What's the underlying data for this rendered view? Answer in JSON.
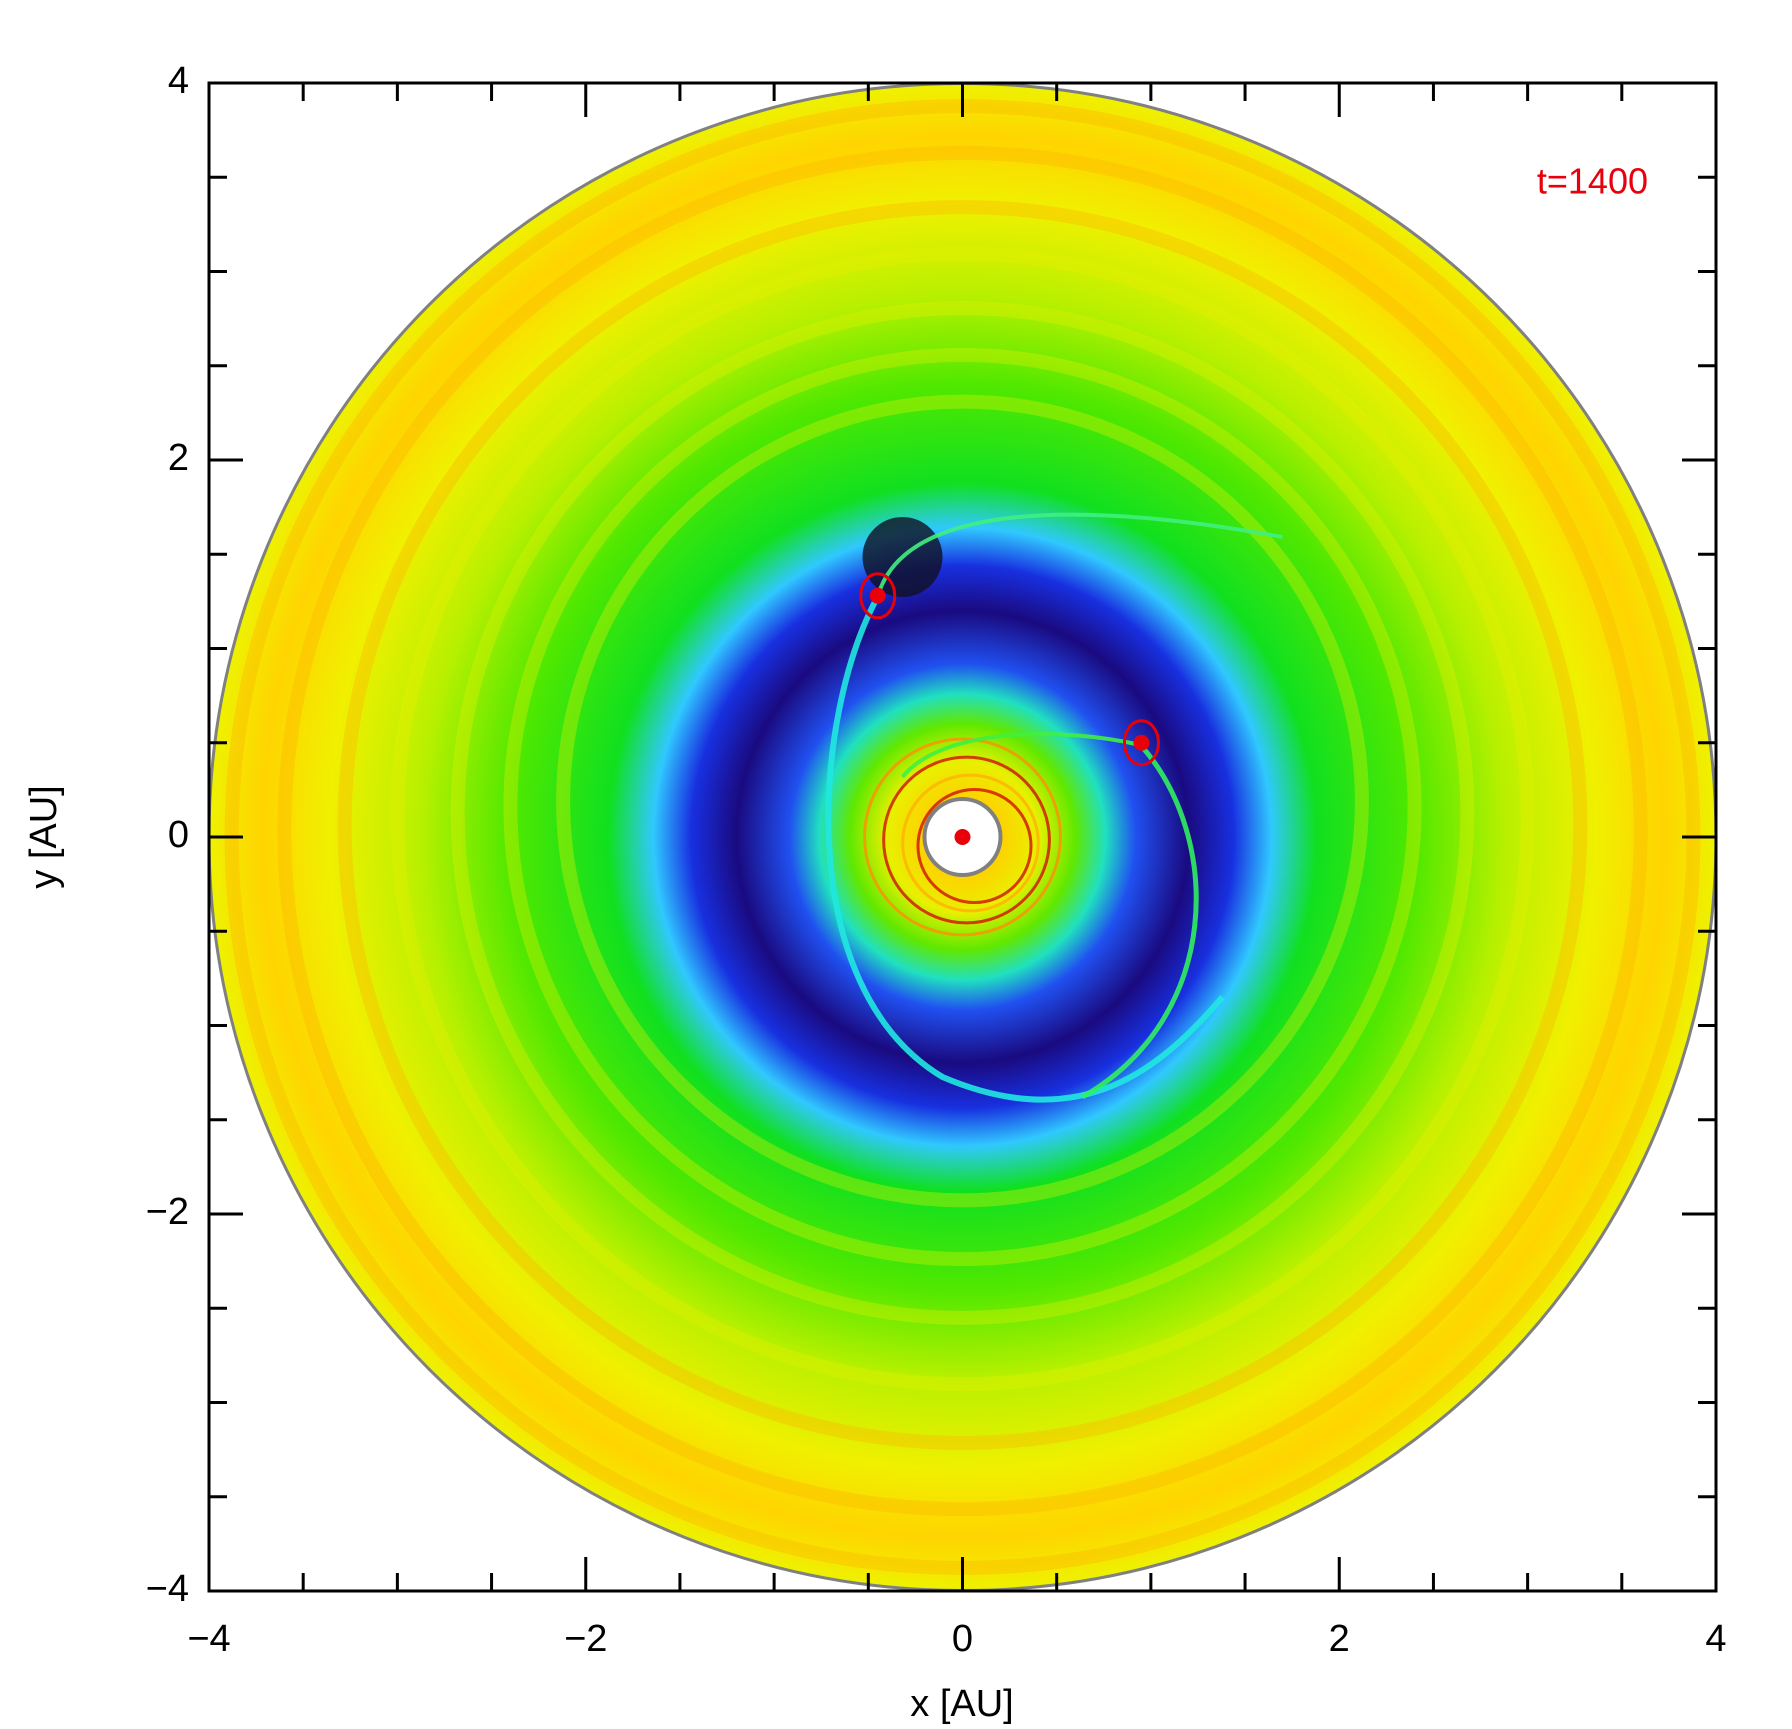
{
  "chart_data": {
    "type": "scatter",
    "annotation": "t=1400",
    "x_label": "x [AU]",
    "y_label": "y [AU]",
    "xlim": [
      -4,
      4
    ],
    "ylim": [
      -4,
      4
    ],
    "xticks": [
      {
        "value": -4,
        "label": "−4"
      },
      {
        "value": -2,
        "label": "−2"
      },
      0,
      2,
      4
    ],
    "yticks": [
      {
        "value": -4,
        "label": "−4"
      },
      {
        "value": -2,
        "label": "−2"
      },
      0,
      2,
      4
    ],
    "xminorticks": [
      -3.5,
      -3,
      -2.5,
      -1.5,
      -1,
      -0.5,
      0.5,
      1,
      1.5,
      2.5,
      3,
      3.5
    ],
    "yminorticks": [
      -3.5,
      -3,
      -2.5,
      -1.5,
      -1,
      -0.5,
      0.5,
      1,
      1.5,
      2.5,
      3,
      3.5
    ],
    "series": [
      {
        "color": "#e8000b",
        "x": [
          0,
          -0.45,
          0.95
        ],
        "y": [
          0,
          1.28,
          0.5
        ]
      }
    ]
  }
}
